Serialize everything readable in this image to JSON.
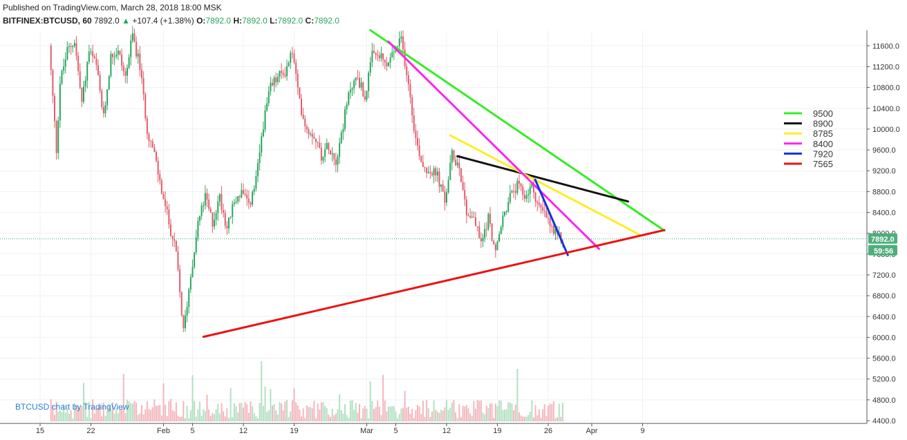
{
  "header": {
    "published": "Published on TradingView.com, March 28, 2018 18:00 MSK",
    "symbol": "BITFINEX:BTCUSD, 60",
    "last": "7892.0",
    "change": "+107.4 (+1.38%)",
    "o_label": "O:",
    "o_value": "7892.0",
    "h_label": "H:",
    "h_value": "7892.0",
    "l_label": "L:",
    "l_value": "7892.0",
    "c_label": "C:",
    "c_value": "7892.0"
  },
  "watermark": "BTCUSD chart by TradingView",
  "price_tag": "7892.0",
  "countdown_tag": "59:56",
  "colors": {
    "up": "#26a65b",
    "down": "#e05c6a",
    "last_price_bg": "#4caf7a",
    "grid": "#eef0f3"
  },
  "chart_data": {
    "type": "candlestick",
    "y_ticks": [
      4400,
      4800,
      5200,
      5600,
      6000,
      6400,
      6800,
      7200,
      7600,
      8000,
      8400,
      8800,
      9200,
      9600,
      10000,
      10400,
      10800,
      11200,
      11600
    ],
    "y_tick_labels": [
      "4400.0",
      "4800.0",
      "5200.0",
      "5600.0",
      "6000.0",
      "6400.0",
      "6800.0",
      "7200.0",
      "7600.0",
      "8000.0",
      "8400.0",
      "8800.0",
      "9200.0",
      "9600.0",
      "10000.0",
      "10400.0",
      "10800.0",
      "11200.0",
      "11600.0"
    ],
    "ylim": [
      4380,
      11880
    ],
    "x_ticks": [
      "15",
      "22",
      "Feb",
      "5",
      "12",
      "19",
      "Mar",
      "5",
      "12",
      "19",
      "26",
      "Apr",
      "9"
    ],
    "x_tick_days": [
      0,
      7,
      17,
      21,
      28,
      35,
      45,
      49,
      56,
      63,
      70,
      76,
      83
    ],
    "x_range_days": [
      -3,
      89
    ],
    "price_path_days": [
      1.5,
      2.5,
      3,
      4,
      5,
      6,
      7,
      8,
      9,
      10,
      11,
      12,
      13,
      14,
      15,
      16,
      17,
      18,
      19,
      20,
      21,
      22,
      23,
      24,
      25,
      26,
      27,
      28,
      29,
      30,
      31,
      32,
      33,
      34,
      35,
      36,
      37,
      38,
      39,
      40,
      41,
      42,
      43,
      44,
      45,
      46,
      47,
      48,
      49,
      50,
      51,
      52,
      53,
      54,
      55,
      56,
      57,
      58,
      59,
      60,
      61,
      62,
      63,
      64,
      65,
      66,
      67,
      68,
      69,
      70,
      71,
      72
    ],
    "price_path_values": [
      11600,
      9600,
      10900,
      11500,
      11700,
      10500,
      11500,
      11200,
      10200,
      11400,
      11500,
      11000,
      11800,
      11200,
      10000,
      9500,
      8800,
      8200,
      7600,
      6100,
      7200,
      8200,
      8700,
      8200,
      8700,
      8100,
      8600,
      8800,
      8500,
      9000,
      10100,
      10800,
      11000,
      11100,
      11500,
      10500,
      10000,
      9900,
      9500,
      9700,
      9400,
      10100,
      10800,
      11000,
      10600,
      11400,
      11400,
      11200,
      11500,
      11700,
      10900,
      9800,
      9300,
      9200,
      9100,
      8600,
      9500,
      9300,
      8400,
      8300,
      7800,
      8300,
      7600,
      8300,
      8700,
      8900,
      8700,
      8900,
      8500,
      8300,
      8000,
      7892
    ],
    "trend_lines": [
      {
        "name": "9500",
        "color": "#33ee22",
        "x1": 45.5,
        "y1": 11900,
        "x2": 86,
        "y2": 8050
      },
      {
        "name": "8900",
        "color": "#111111",
        "x1": 57.5,
        "y1": 9480,
        "x2": 81,
        "y2": 8610
      },
      {
        "name": "8785",
        "color": "#ffee22",
        "x1": 56.5,
        "y1": 9880,
        "x2": 82.5,
        "y2": 7980
      },
      {
        "name": "8400",
        "color": "#ff22ee",
        "x1": 48,
        "y1": 11680,
        "x2": 77,
        "y2": 7700
      },
      {
        "name": "7920",
        "color": "#1133dd",
        "x1": 68.2,
        "y1": 9030,
        "x2": 72.7,
        "y2": 7580
      },
      {
        "name": "7565",
        "color": "#ee1111",
        "x1": 22.5,
        "y1": 6010,
        "x2": 86,
        "y2": 8060
      }
    ],
    "legend": {
      "placement": "right",
      "entries": [
        "9500",
        "8900",
        "8785",
        "8400",
        "7920",
        "7565"
      ]
    },
    "current_price": 7892,
    "grid": true
  }
}
